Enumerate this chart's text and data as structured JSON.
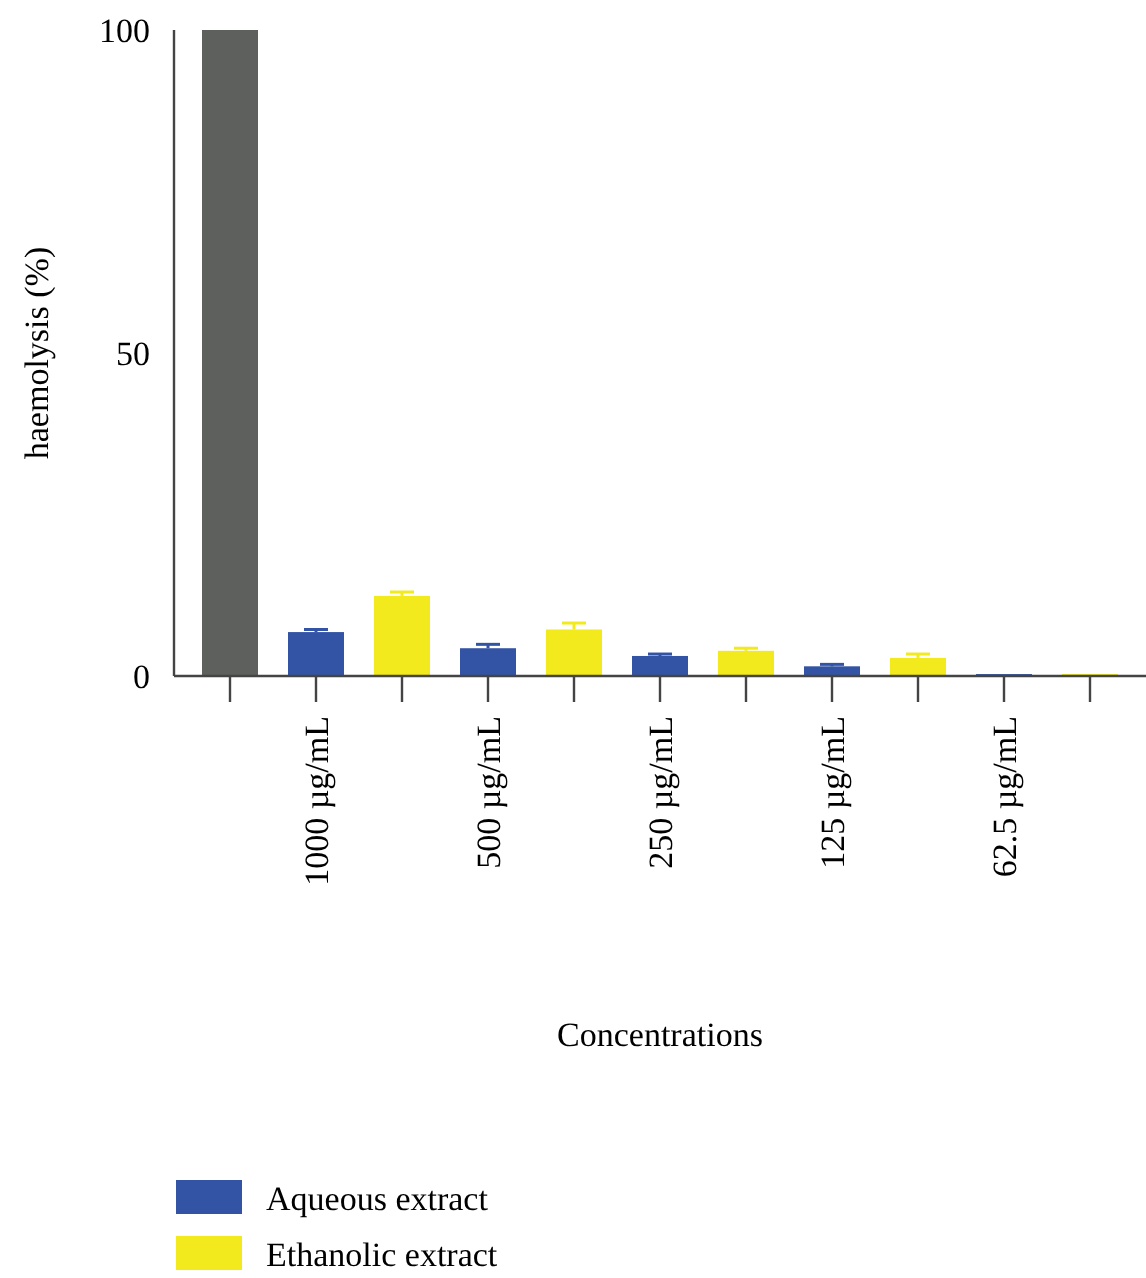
{
  "chart_data": {
    "type": "bar",
    "xlabel": "Concentrations",
    "ylabel": "haemolysis (%)",
    "categories": [
      null,
      "1000 µg/mL",
      null,
      "500 µg/mL",
      null,
      "250 µg/mL",
      null,
      "125 µg/mL",
      null,
      "62.5 µg/mL",
      null
    ],
    "series": [
      {
        "color": "#5e605e",
        "values": [
          100,
          null,
          null,
          null,
          null,
          null,
          null,
          null,
          null,
          null,
          null
        ]
      },
      {
        "name": "Aqueous extract",
        "color": "#3353a4",
        "values": [
          null,
          6.8,
          null,
          4.3,
          null,
          3.1,
          null,
          1.5,
          null,
          0.3,
          null
        ],
        "errors": [
          null,
          [
            6.8,
            7.2
          ],
          null,
          [
            4.3,
            4.9
          ],
          null,
          [
            3.1,
            3.4
          ],
          null,
          [
            1.5,
            1.8
          ],
          null,
          null,
          null
        ]
      },
      {
        "name": "Ethanolic extract",
        "color": "#f2ea1c",
        "values": [
          null,
          null,
          12.4,
          null,
          7.2,
          null,
          3.9,
          null,
          2.8,
          null,
          0.3
        ],
        "errors": [
          null,
          null,
          [
            12.4,
            13
          ],
          null,
          [
            7.2,
            8.2
          ],
          null,
          [
            3.9,
            4.3
          ],
          null,
          [
            2.8,
            3.4
          ],
          null,
          null
        ]
      }
    ],
    "ylim": [
      0,
      100
    ],
    "yticks": [
      0,
      50,
      100
    ],
    "grid": false,
    "legend": "bottom left"
  }
}
